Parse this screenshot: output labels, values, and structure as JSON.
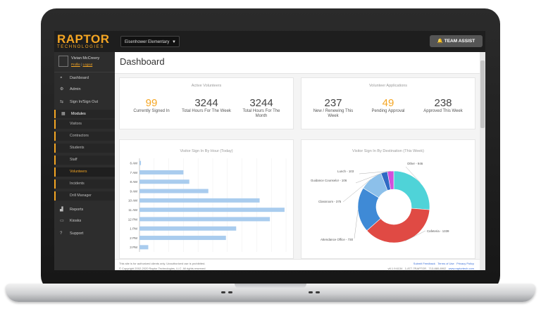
{
  "app": {
    "logo_main": "RAPTOR",
    "logo_sub": "TECHNOLOGIES",
    "school": "Eisenhower Elementary",
    "team_assist": "TEAM ASSIST"
  },
  "user": {
    "name": "Vivian McCreery",
    "profile": "Profile",
    "separator": "|",
    "logout": "Logout"
  },
  "nav": {
    "dashboard": "Dashboard",
    "admin": "Admin",
    "signin": "Sign In/Sign Out",
    "modules": "Modules",
    "reports": "Reports",
    "kiosks": "Kiosks",
    "support": "Support"
  },
  "modules": [
    "Visitors",
    "Contractors",
    "Students",
    "Staff",
    "Volunteers",
    "Incidents",
    "Drill Manager"
  ],
  "page_title": "Dashboard",
  "active_volunteers": {
    "title": "Active Volunteers",
    "stats": [
      {
        "value": "99",
        "label": "Currently Signed In"
      },
      {
        "value": "3244",
        "label": "Total Hours For The Week"
      },
      {
        "value": "3244",
        "label": "Total Hours For The Month"
      }
    ]
  },
  "volunteer_apps": {
    "title": "Volunteer Applications",
    "stats": [
      {
        "value": "237",
        "label": "New / Renewing This Week"
      },
      {
        "value": "49",
        "label": "Pending Approval"
      },
      {
        "value": "238",
        "label": "Approved This Week"
      }
    ]
  },
  "chart_data": [
    {
      "type": "bar",
      "orientation": "horizontal",
      "title": "Visitor Sign In By Hour (Today)",
      "categories": [
        "6 AM",
        "7 AM",
        "8 AM",
        "9 AM",
        "10 AM",
        "11 AM",
        "12 PM",
        "1 PM",
        "2 PM",
        "3 PM"
      ],
      "values": [
        1,
        30,
        34,
        47,
        82,
        99,
        89,
        66,
        59,
        6
      ],
      "xlim": [
        0,
        100
      ],
      "grid": true,
      "bar_color": "#a9ccee"
    },
    {
      "type": "pie",
      "donut": true,
      "title": "Visitor Sign In By Destination (This Week)",
      "labels": [
        "Other",
        "Cafeteria",
        "Attendance Office",
        "Classroom",
        "Guidance Counselor",
        "Lunch"
      ],
      "values": [
        946,
        1339,
        730,
        375,
        106,
        103
      ],
      "display_labels": [
        "Other - 946",
        "Cafeteria - 1339",
        "Attendance Office - 730",
        "Classroom - 375",
        "Guidance Counselor - 106",
        "Lunch - 103"
      ],
      "colors": [
        "#4fd3d8",
        "#e04a44",
        "#3f8ad6",
        "#8cc0ea",
        "#2f6ac4",
        "#d24fdc"
      ]
    }
  ],
  "footer": {
    "line1": "This site is for authorized clients only. Unauthorized use is prohibited.",
    "line2": "© Copyright 2002-2020 Raptor Technologies, LLC. All rights reserved.",
    "links": [
      "Submit Feedback",
      "Terms of Use",
      "Privacy Policy"
    ],
    "version": "v8.1.9.6134",
    "phone1": "1-877-7RAPTOR",
    "phone2": "713-880-8902",
    "site": "www.raptortech.com"
  }
}
